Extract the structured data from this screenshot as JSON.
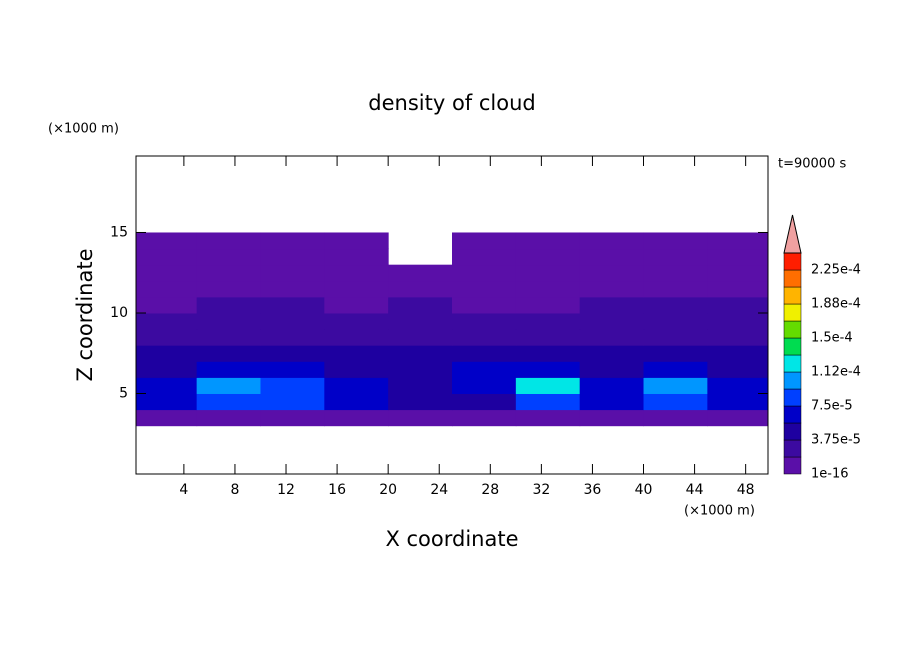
{
  "chart_data": {
    "type": "contour",
    "title": "density of cloud",
    "xlabel": "X coordinate",
    "ylabel": "Z coordinate",
    "x_unit": "(×1000 m)",
    "y_unit": "(×1000 m)",
    "time_label": "t=90000 s",
    "xlim": [
      0.25,
      49.75
    ],
    "ylim": [
      0,
      19.75
    ],
    "xticks": [
      4,
      8,
      12,
      16,
      20,
      24,
      28,
      32,
      36,
      40,
      44,
      48
    ],
    "yticks": [
      5,
      10,
      15
    ],
    "x": [
      2.5,
      7.5,
      12.5,
      17.5,
      22.5,
      27.5,
      32.5,
      37.5,
      42.5,
      47.5
    ],
    "y": [
      3.5,
      4.5,
      5.5,
      6.5,
      7.5,
      8.5,
      9.5,
      10.5,
      11.5,
      12.5,
      13.5,
      14.5
    ],
    "z": [
      [
        1.5e-05,
        1.5e-05,
        1.5e-05,
        1.5e-05,
        1.5e-05,
        1.5e-05,
        1.5e-05,
        1.5e-05,
        1.5e-05,
        1.5e-05
      ],
      [
        6e-05,
        9e-05,
        8e-05,
        6e-05,
        4e-05,
        5e-05,
        9e-05,
        6e-05,
        9e-05,
        6e-05
      ],
      [
        7e-05,
        0.0001,
        9e-05,
        7e-05,
        5e-05,
        7e-05,
        0.00012,
        7e-05,
        0.0001,
        7e-05
      ],
      [
        5e-05,
        6e-05,
        6e-05,
        5e-05,
        5.5e-05,
        6e-05,
        6e-05,
        5e-05,
        6e-05,
        5e-05
      ],
      [
        4e-05,
        4e-05,
        4.5e-05,
        4e-05,
        4e-05,
        4e-05,
        4e-05,
        4e-05,
        4e-05,
        4e-05
      ],
      [
        3e-05,
        3.5e-05,
        3e-05,
        3e-05,
        3e-05,
        3e-05,
        3e-05,
        3e-05,
        3.5e-05,
        3e-05
      ],
      [
        2e-05,
        3e-05,
        2.5e-05,
        2e-05,
        2e-05,
        2e-05,
        2e-05,
        2.5e-05,
        3e-05,
        2.5e-05
      ],
      [
        1.5e-05,
        2e-05,
        2e-05,
        1.5e-05,
        2e-05,
        1e-05,
        1.5e-05,
        2e-05,
        2e-05,
        2e-05
      ],
      [
        1e-05,
        1e-05,
        1e-05,
        1e-05,
        1e-05,
        1e-05,
        1e-05,
        1e-05,
        1e-05,
        1e-05
      ],
      [
        1e-05,
        1e-05,
        1e-05,
        1e-05,
        1e-05,
        1e-05,
        1e-05,
        1e-05,
        1e-05,
        1e-05
      ],
      [
        1e-05,
        1e-05,
        1e-05,
        1e-05,
        null,
        1e-05,
        1e-05,
        1e-05,
        1e-05,
        1e-05
      ],
      [
        1e-05,
        1e-05,
        1e-05,
        1e-05,
        null,
        1e-05,
        1e-05,
        1e-05,
        1e-05,
        1e-05
      ]
    ],
    "levels": [
      1e-16,
      1.875e-05,
      3.75e-05,
      5.625e-05,
      7.5e-05,
      9.375e-05,
      0.0001125,
      0.00013125,
      0.00015,
      0.00016875,
      0.0001875,
      0.00020625,
      0.000225,
      0.00024375
    ],
    "colors": [
      "#5a0fa8",
      "#3c0aa0",
      "#1e00a0",
      "#0000c8",
      "#0040ff",
      "#0096ff",
      "#00e6e6",
      "#00dc50",
      "#64dc00",
      "#f0f000",
      "#ffb400",
      "#ff6e00",
      "#ff1e00"
    ],
    "extend_color": "#f0a0a0",
    "colorbar_ticks": [
      {
        "value": 1e-16,
        "label": "1e-16"
      },
      {
        "value": 3.75e-05,
        "label": "3.75e-5"
      },
      {
        "value": 7.5e-05,
        "label": "7.5e-5"
      },
      {
        "value": 0.0001125,
        "label": "1.12e-4"
      },
      {
        "value": 0.00015,
        "label": "1.5e-4"
      },
      {
        "value": 0.0001875,
        "label": "1.88e-4"
      },
      {
        "value": 0.000225,
        "label": "2.25e-4"
      }
    ]
  }
}
